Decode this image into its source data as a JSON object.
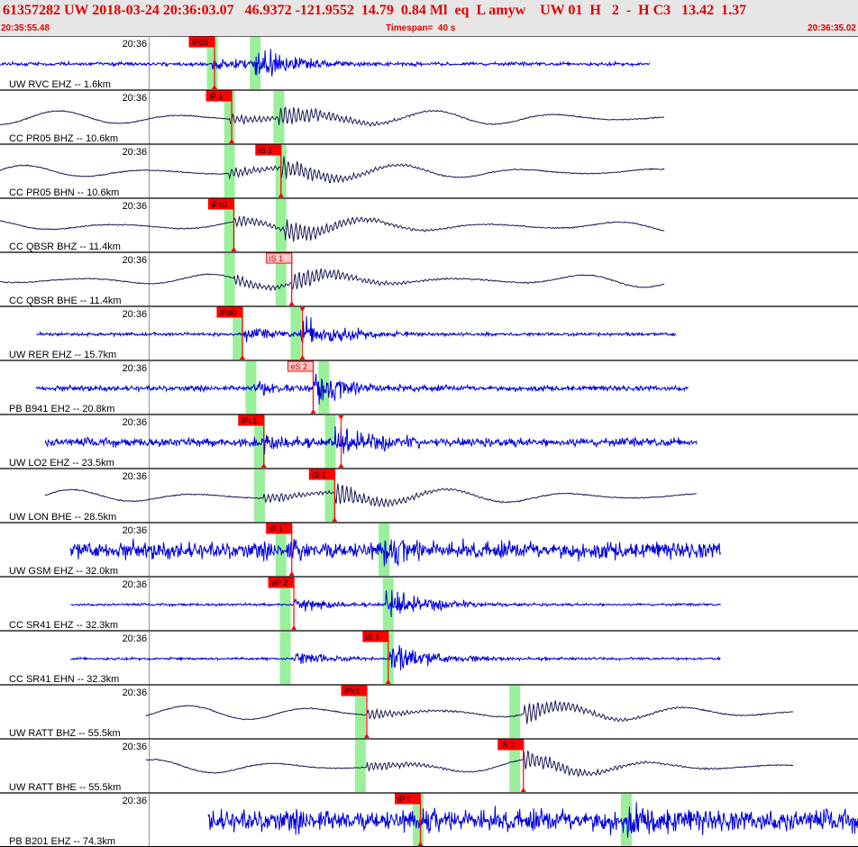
{
  "header": {
    "title": "61357282 UW 2018-03-24 20:36:03.07   46.9372 -121.9552  14.79  0.84 Ml  eq  L amyw    UW 01  H   2  -  H C3   13.42  1.37",
    "start_time": "20:35:55.48",
    "timespan": "Timespan=  40 s",
    "end_time": "20:36:35.02"
  },
  "colors": {
    "trace_blue": "#0000dd",
    "trace_navy": "#1a1a55",
    "pick_red": "#ff0000",
    "pick_pink": "#ffc8c8",
    "window_green": "#9af09a",
    "header_bg": "#e6e6e6"
  },
  "chart_data": {
    "type": "line",
    "title": "61357282 UW 2018-03-24 20:36:03.07",
    "time_axis": {
      "start": "20:35:55.48",
      "end": "20:36:35.02",
      "span_s": 40,
      "tick_label": "20:36",
      "tick_time_s": 4.52
    },
    "traces": [
      {
        "label": "UW RVC EHZ -- 1.6km",
        "tick": "20:36",
        "color": "blue",
        "start_s": 0.0,
        "end_s": 30.3,
        "noise": 0.06,
        "style": "noise",
        "p_s": 9.9,
        "s_s": 11.9,
        "windows": [
          9.9,
          11.9
        ],
        "picks": [
          {
            "label": "iPc0",
            "t": 10.0,
            "style": "red"
          }
        ]
      },
      {
        "label": "CC PR05 BHZ -- 10.6km",
        "tick": "20:36",
        "color": "navy",
        "start_s": 0.0,
        "end_s": 31.0,
        "noise": 0.05,
        "style": "wavy",
        "p_s": 10.7,
        "s_s": 13.0,
        "windows": [
          10.7,
          13.0
        ],
        "picks": [
          {
            "label": "iP 1",
            "t": 10.8,
            "style": "red"
          }
        ]
      },
      {
        "label": "CC PR05 BHN -- 10.6km",
        "tick": "20:36",
        "color": "navy",
        "start_s": 0.0,
        "end_s": 31.0,
        "noise": 0.05,
        "style": "wavy",
        "p_s": 10.7,
        "s_s": 13.1,
        "windows": [
          10.7,
          13.1
        ],
        "picks": [
          {
            "label": "iS 1",
            "t": 13.1,
            "style": "red"
          }
        ]
      },
      {
        "label": "CC QBSR BHZ -- 11.4km",
        "tick": "20:36",
        "color": "navy",
        "start_s": 0.0,
        "end_s": 31.0,
        "noise": 0.05,
        "style": "wavy",
        "p_s": 10.9,
        "s_s": 13.3,
        "windows": [
          10.7,
          13.1
        ],
        "picks": [
          {
            "label": "iPc0",
            "t": 10.9,
            "style": "red"
          }
        ]
      },
      {
        "label": "CC QBSR BHE -- 11.4km",
        "tick": "20:36",
        "color": "navy",
        "start_s": 0.0,
        "end_s": 31.0,
        "noise": 0.05,
        "style": "wavy",
        "p_s": 10.9,
        "s_s": 13.6,
        "windows": [
          10.7,
          13.1
        ],
        "picks": [
          {
            "label": "iS 1",
            "t": 13.6,
            "style": "pink"
          }
        ]
      },
      {
        "label": "UW RER EHZ -- 15.7km",
        "tick": "20:36",
        "color": "blue",
        "start_s": 1.7,
        "end_s": 31.5,
        "noise": 0.05,
        "style": "noise",
        "p_s": 11.3,
        "s_s": 14.0,
        "windows": [
          11.1,
          13.8
        ],
        "picks": [
          {
            "label": "iPd0",
            "t": 11.3,
            "style": "red"
          },
          {
            "label": "",
            "t": 14.1,
            "style": "marker"
          }
        ]
      },
      {
        "label": "PB B941 EH2 -- 20.8km",
        "tick": "20:36",
        "color": "blue",
        "start_s": 1.7,
        "end_s": 32.1,
        "noise": 0.12,
        "style": "noise",
        "p_s": 11.8,
        "s_s": 14.6,
        "windows": [
          11.7,
          15.1
        ],
        "picks": [
          {
            "label": "eS 2",
            "t": 14.6,
            "style": "pink"
          }
        ]
      },
      {
        "label": "UW LO2 EHZ -- 23.5km",
        "tick": "20:36",
        "color": "blue",
        "start_s": 2.1,
        "end_s": 32.5,
        "noise": 0.25,
        "style": "noise",
        "p_s": 12.3,
        "s_s": 15.6,
        "windows": [
          12.1,
          15.4
        ],
        "picks": [
          {
            "label": "iPc1",
            "t": 12.3,
            "style": "red"
          },
          {
            "label": "",
            "t": 15.9,
            "style": "marker"
          }
        ]
      },
      {
        "label": "UW LON BHE -- 28.5km",
        "tick": "20:36",
        "color": "navy",
        "start_s": 2.1,
        "end_s": 32.5,
        "noise": 0.03,
        "style": "wavy",
        "p_s": 12.3,
        "s_s": 15.6,
        "windows": [
          12.1,
          15.4
        ],
        "picks": [
          {
            "label": "iS 1",
            "t": 15.6,
            "style": "red"
          }
        ]
      },
      {
        "label": "UW GSM EHZ -- 32.0km",
        "tick": "20:36",
        "color": "blue",
        "start_s": 3.3,
        "end_s": 33.6,
        "noise": 0.55,
        "style": "noise",
        "p_s": 13.5,
        "s_s": 17.9,
        "windows": [
          13.1,
          17.9
        ],
        "picks": [
          {
            "label": "iP 1",
            "t": 13.6,
            "style": "red"
          }
        ]
      },
      {
        "label": "CC SR41 EHZ -- 32.3km",
        "tick": "20:36",
        "color": "blue",
        "start_s": 3.3,
        "end_s": 33.6,
        "noise": 0.02,
        "style": "noise",
        "p_s": 13.7,
        "s_s": 18.0,
        "windows": [
          13.3,
          18.1
        ],
        "picks": [
          {
            "label": "eP 2",
            "t": 13.7,
            "style": "red"
          }
        ]
      },
      {
        "label": "CC SR41 EHN -- 32.3km",
        "tick": "20:36",
        "color": "blue",
        "start_s": 3.3,
        "end_s": 33.6,
        "noise": 0.02,
        "style": "noise",
        "p_s": 13.7,
        "s_s": 18.1,
        "windows": [
          13.3,
          18.1
        ],
        "picks": [
          {
            "label": "iS 1",
            "t": 18.1,
            "style": "red"
          }
        ]
      },
      {
        "label": "UW RATT BHZ -- 55.5km",
        "tick": "20:36",
        "color": "navy",
        "start_s": 6.8,
        "end_s": 37.0,
        "noise": 0.03,
        "style": "wavy",
        "p_s": 17.1,
        "s_s": 24.4,
        "windows": [
          16.8,
          24.0
        ],
        "picks": [
          {
            "label": "iPc1",
            "t": 17.1,
            "style": "red"
          }
        ]
      },
      {
        "label": "UW RATT BHE -- 55.5km",
        "tick": "20:36",
        "color": "navy",
        "start_s": 6.8,
        "end_s": 37.0,
        "noise": 0.03,
        "style": "wavy",
        "p_s": 17.1,
        "s_s": 24.4,
        "windows": [
          16.8,
          24.0
        ],
        "picks": [
          {
            "label": "iS 2",
            "t": 24.4,
            "style": "red"
          }
        ]
      },
      {
        "label": "PB B201 EHZ -- 74.3km",
        "tick": "20:36",
        "color": "blue",
        "start_s": 9.7,
        "end_s": 40.0,
        "noise": 0.75,
        "style": "noise",
        "p_s": 19.6,
        "s_s": 29.0,
        "windows": [
          19.5,
          29.2
        ],
        "picks": [
          {
            "label": "iP 1",
            "t": 19.6,
            "style": "red"
          }
        ]
      }
    ]
  }
}
